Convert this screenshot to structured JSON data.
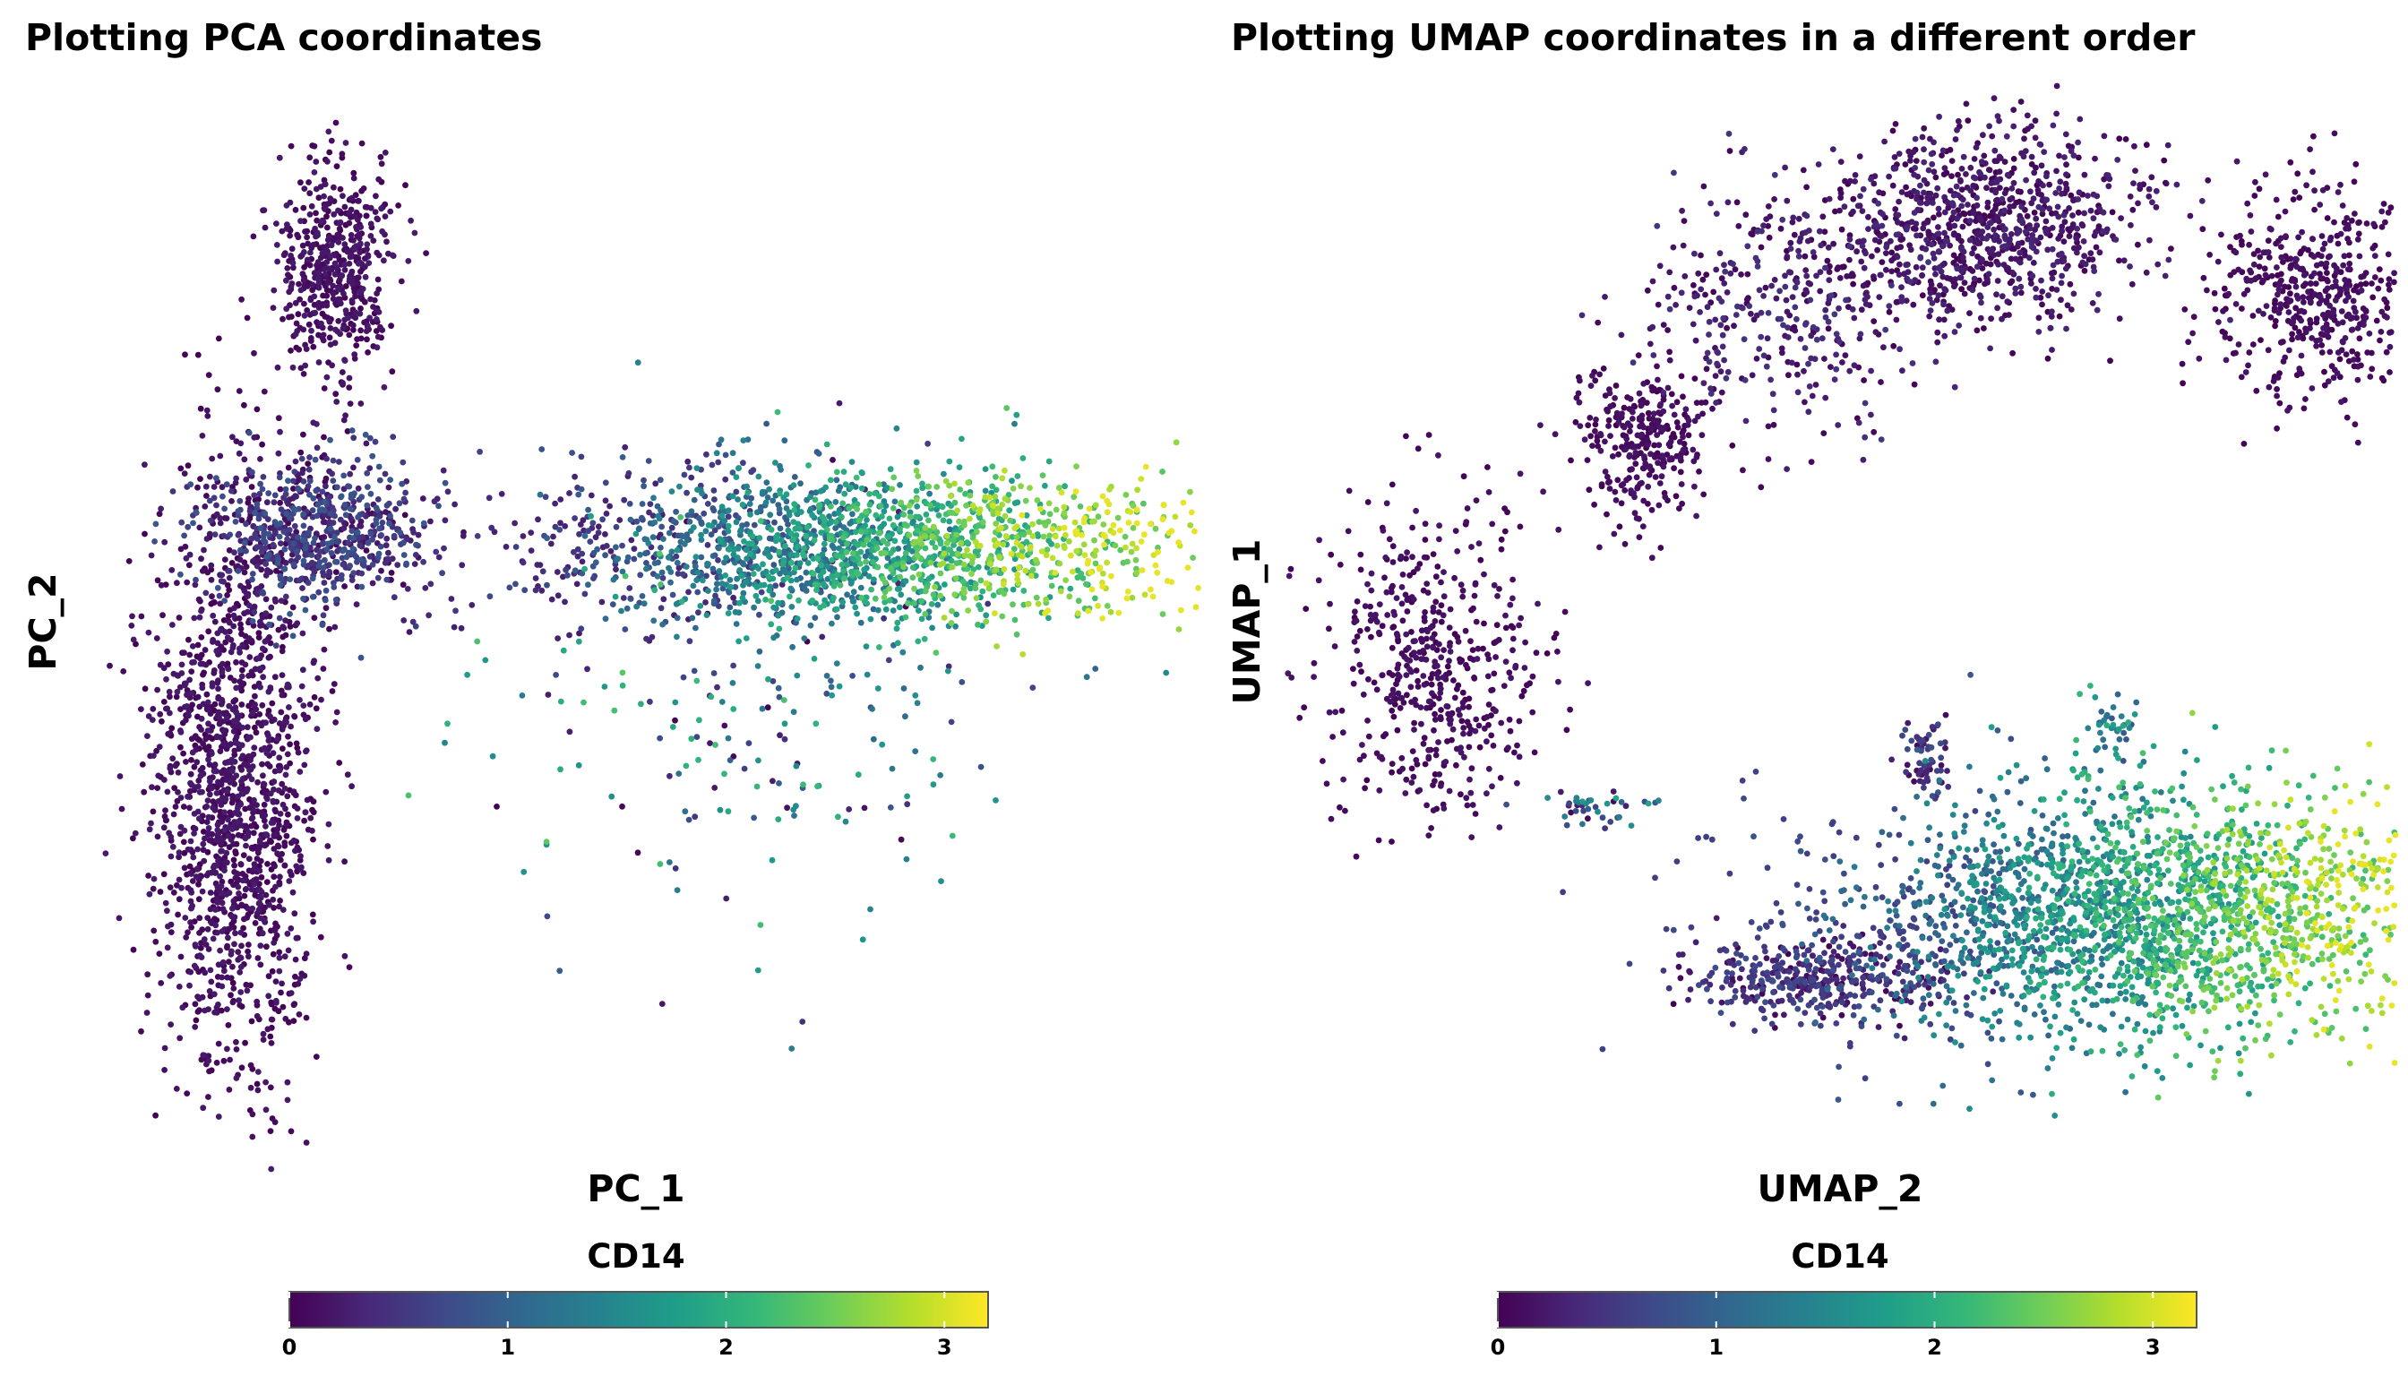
{
  "chart_data": [
    {
      "type": "scatter",
      "title": "Plotting PCA coordinates",
      "xlabel": "PC_1",
      "ylabel": "PC_2",
      "color_by": "CD14",
      "colorbar": {
        "title": "CD14",
        "ticks": [
          "0",
          "1",
          "2",
          "3"
        ],
        "range": [
          0,
          3.2
        ],
        "colormap": "viridis",
        "placement": "bottom-center"
      },
      "axes_visible": false,
      "grid": false,
      "clusters": [
        {
          "cx": 0.24,
          "cy": 0.18,
          "sx": 0.025,
          "sy": 0.05,
          "n": 520,
          "expr": [
            0,
            0.25
          ]
        },
        {
          "cx": 0.22,
          "cy": 0.42,
          "sx": 0.05,
          "sy": 0.035,
          "n": 700,
          "expr": [
            0,
            0.9
          ]
        },
        {
          "cx": 0.15,
          "cy": 0.65,
          "sx": 0.035,
          "sy": 0.13,
          "n": 1500,
          "expr": [
            0,
            0.25
          ]
        },
        {
          "cx": 0.7,
          "cy": 0.43,
          "sx": 0.14,
          "sy": 0.035,
          "n": 1800,
          "expr": [
            0.3,
            3.1
          ],
          "trend": "east"
        },
        {
          "cx": 0.62,
          "cy": 0.56,
          "sx": 0.11,
          "sy": 0.1,
          "n": 260,
          "expr": [
            0,
            2.4
          ]
        }
      ]
    },
    {
      "type": "scatter",
      "title": "Plotting UMAP coordinates in a different order",
      "xlabel": "UMAP_2",
      "ylabel": "UMAP_1",
      "color_by": "CD14",
      "colorbar": {
        "title": "CD14",
        "ticks": [
          "0",
          "1",
          "2",
          "3"
        ],
        "range": [
          0,
          3.2
        ],
        "colormap": "viridis",
        "placement": "bottom-center"
      },
      "axes_visible": false,
      "grid": false,
      "clusters": [
        {
          "cx": 0.63,
          "cy": 0.14,
          "sx": 0.07,
          "sy": 0.045,
          "n": 900,
          "expr": [
            0,
            0.35
          ]
        },
        {
          "cx": 0.93,
          "cy": 0.2,
          "sx": 0.045,
          "sy": 0.05,
          "n": 500,
          "expr": [
            0,
            0.2
          ]
        },
        {
          "cx": 0.32,
          "cy": 0.34,
          "sx": 0.03,
          "sy": 0.035,
          "n": 300,
          "expr": [
            0,
            0.2
          ]
        },
        {
          "cx": 0.45,
          "cy": 0.22,
          "sx": 0.06,
          "sy": 0.06,
          "n": 350,
          "expr": [
            0,
            0.5
          ]
        },
        {
          "cx": 0.13,
          "cy": 0.55,
          "sx": 0.05,
          "sy": 0.07,
          "n": 500,
          "expr": [
            0,
            0.2
          ]
        },
        {
          "cx": 0.77,
          "cy": 0.78,
          "sx": 0.14,
          "sy": 0.06,
          "n": 2400,
          "expr": [
            0.6,
            3.1
          ],
          "trend": "east"
        },
        {
          "cx": 0.48,
          "cy": 0.84,
          "sx": 0.06,
          "sy": 0.02,
          "n": 380,
          "expr": [
            0,
            0.8
          ]
        },
        {
          "cx": 0.58,
          "cy": 0.64,
          "sx": 0.012,
          "sy": 0.02,
          "n": 60,
          "expr": [
            0,
            0.8
          ]
        },
        {
          "cx": 0.75,
          "cy": 0.61,
          "sx": 0.015,
          "sy": 0.015,
          "n": 40,
          "expr": [
            0.8,
            2.0
          ]
        },
        {
          "cx": 0.28,
          "cy": 0.68,
          "sx": 0.03,
          "sy": 0.008,
          "n": 40,
          "expr": [
            0,
            2.0
          ]
        }
      ]
    }
  ],
  "colors": {
    "viridis_low": "#440154",
    "viridis_mid": "#21918c",
    "viridis_high": "#fde725"
  }
}
